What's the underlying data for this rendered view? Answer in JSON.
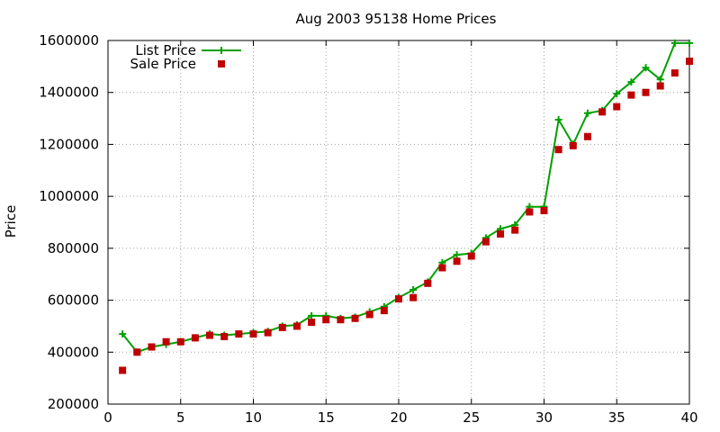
{
  "chart_data": {
    "type": "line",
    "title": "Aug 2003 95138 Home Prices",
    "xlabel": "",
    "ylabel": "Price",
    "xlim": [
      0,
      40
    ],
    "ylim": [
      200000,
      1600000
    ],
    "x_ticks": [
      "0",
      "5",
      "10",
      "15",
      "20",
      "25",
      "30",
      "35",
      "40"
    ],
    "y_ticks": [
      "200000",
      "400000",
      "600000",
      "800000",
      "1000000",
      "1200000",
      "1400000",
      "1600000"
    ],
    "grid": true,
    "legend_position": "top-left",
    "x": [
      1,
      2,
      3,
      4,
      5,
      6,
      7,
      8,
      9,
      10,
      11,
      12,
      13,
      14,
      15,
      16,
      17,
      18,
      19,
      20,
      21,
      22,
      23,
      24,
      25,
      26,
      27,
      28,
      29,
      30,
      31,
      32,
      33,
      34,
      35,
      36,
      37,
      38,
      39,
      40
    ],
    "series": [
      {
        "name": "List Price",
        "style": "lines+points",
        "color": "#00a000",
        "values": [
          470000,
          400000,
          420000,
          430000,
          440000,
          455000,
          470000,
          465000,
          470000,
          475000,
          480000,
          500000,
          505000,
          540000,
          540000,
          530000,
          535000,
          555000,
          575000,
          610000,
          640000,
          670000,
          745000,
          775000,
          780000,
          840000,
          875000,
          890000,
          960000,
          960000,
          1295000,
          1200000,
          1320000,
          1330000,
          1395000,
          1440000,
          1495000,
          1450000,
          1590000,
          1590000
        ]
      },
      {
        "name": "Sale Price",
        "style": "points",
        "color": "#c00000",
        "values": [
          330000,
          400000,
          420000,
          440000,
          440000,
          455000,
          465000,
          460000,
          470000,
          470000,
          475000,
          495000,
          500000,
          515000,
          525000,
          525000,
          530000,
          545000,
          560000,
          605000,
          610000,
          665000,
          725000,
          750000,
          770000,
          825000,
          855000,
          870000,
          940000,
          945000,
          1180000,
          1195000,
          1230000,
          1325000,
          1345000,
          1390000,
          1400000,
          1425000,
          1475000,
          1520000
        ]
      }
    ]
  }
}
